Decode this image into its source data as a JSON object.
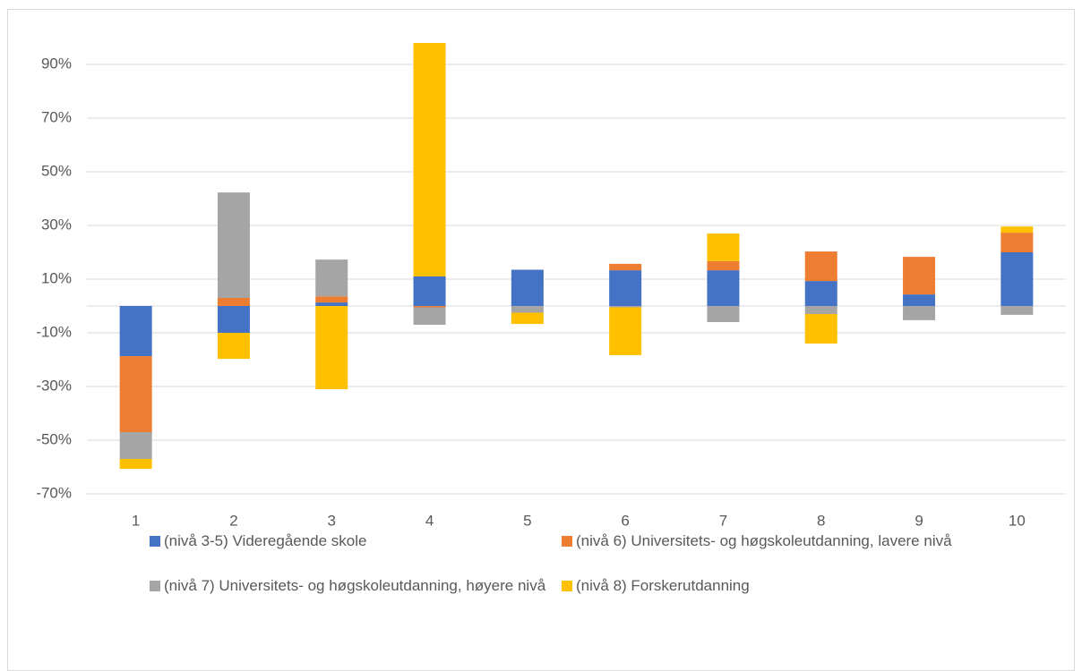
{
  "chart_data": {
    "type": "stacked-bar",
    "categories": [
      "1",
      "2",
      "3",
      "4",
      "5",
      "6",
      "7",
      "8",
      "9",
      "10"
    ],
    "series": [
      {
        "name": "(nivå 3-5) Videregående skole",
        "color": "#4472c4",
        "values": [
          -18.7,
          -10,
          1.3,
          11,
          13.5,
          13.3,
          13.3,
          9.3,
          4.3,
          20
        ]
      },
      {
        "name": "(nivå 6) Universitets- og høgskoleutdanning, lavere nivå",
        "color": "#ed7d31",
        "values": [
          -28.3,
          3,
          2.3,
          -0.5,
          0,
          2.4,
          3.4,
          11,
          14,
          7.3
        ]
      },
      {
        "name": "(nivå 7) Universitets- og høgskoleutdanning, høyere nivå",
        "color": "#a5a5a5",
        "values": [
          -10,
          39.3,
          13.7,
          -6.5,
          -2.5,
          -0.5,
          -6,
          -3,
          -5.3,
          -3.3
        ]
      },
      {
        "name": "(nivå 8) Forskerutdanning",
        "color": "#ffc000",
        "values": [
          -3.7,
          -9.7,
          -31,
          87,
          -4.2,
          -17.8,
          10.3,
          -11,
          0,
          2.3
        ]
      }
    ],
    "ylim": [
      -72,
      105
    ],
    "yticks": [
      {
        "value": -70,
        "label": "-70%"
      },
      {
        "value": -50,
        "label": "-50%"
      },
      {
        "value": -30,
        "label": "-30%"
      },
      {
        "value": -10,
        "label": "-10%"
      },
      {
        "value": 10,
        "label": "10%"
      },
      {
        "value": 30,
        "label": "30%"
      },
      {
        "value": 50,
        "label": "50%"
      },
      {
        "value": 70,
        "label": "70%"
      },
      {
        "value": 90,
        "label": "90%"
      }
    ],
    "grid": true
  }
}
